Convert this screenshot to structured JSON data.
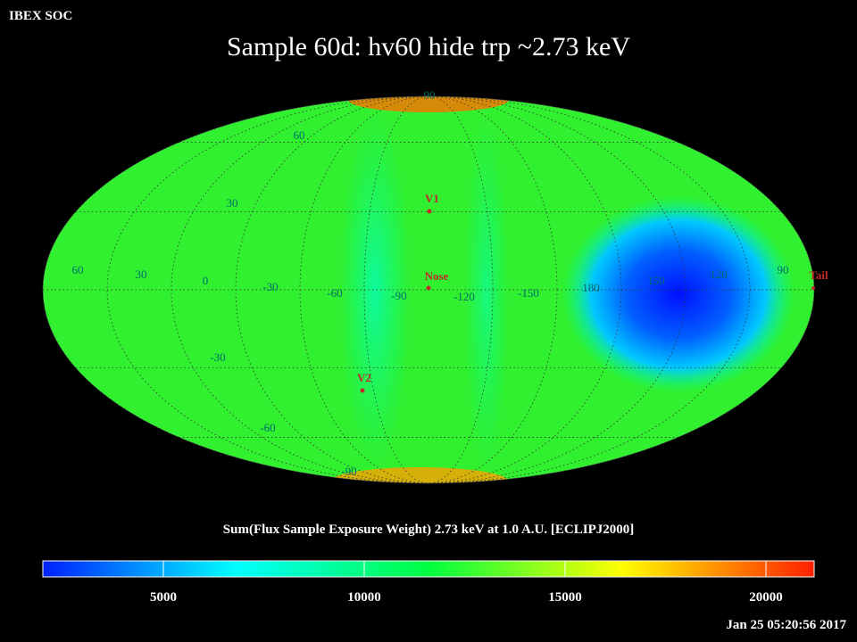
{
  "header": {
    "org": "IBEX SOC",
    "title": "Sample 60d: hv60 hide trp ~2.73 keV"
  },
  "map": {
    "grid_labels": [
      "90",
      "60",
      "30",
      "60",
      "30",
      "0",
      "-30",
      "-60",
      "-90",
      "-120",
      "-150",
      "180",
      "150",
      "120",
      "90",
      "-30",
      "-60",
      "-90"
    ],
    "markers": [
      {
        "label": "V1"
      },
      {
        "label": "Nose"
      },
      {
        "label": "V2"
      },
      {
        "label": "Tail"
      }
    ]
  },
  "colorbar": {
    "label": "Sum(Flux Sample Exposure Weight)  2.73 keV at 1.0 A.U. [ECLIPJ2000]",
    "range": [
      2000,
      21200
    ],
    "ticks": [
      5000,
      10000,
      15000,
      20000
    ]
  },
  "timestamp": "Jan 25 05:20:56 2017"
}
